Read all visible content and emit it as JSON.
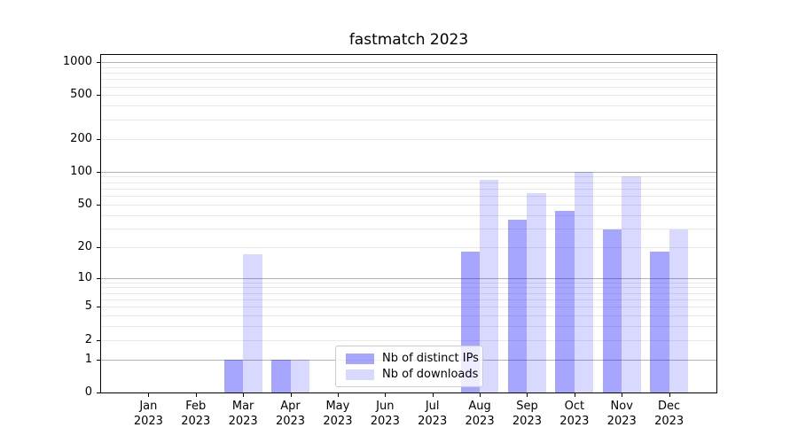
{
  "chart_data": {
    "type": "bar",
    "title": "fastmatch 2023",
    "categories": [
      "Jan",
      "Feb",
      "Mar",
      "Apr",
      "May",
      "Jun",
      "Jul",
      "Aug",
      "Sep",
      "Oct",
      "Nov",
      "Dec"
    ],
    "year_label": "2023",
    "series": [
      {
        "name": "Nb of distinct IPs",
        "color": "rgba(0,0,255,0.35)",
        "values": [
          0,
          0,
          1,
          1,
          0,
          0,
          0,
          18,
          36,
          44,
          29,
          18
        ]
      },
      {
        "name": "Nb of downloads",
        "color": "rgba(0,0,255,0.15)",
        "values": [
          0,
          0,
          17,
          1,
          0,
          0,
          0,
          85,
          63,
          100,
          90,
          29
        ]
      }
    ],
    "yticks": [
      0,
      1,
      2,
      5,
      10,
      20,
      50,
      100,
      200,
      500,
      1000
    ],
    "major_gridlines": [
      1,
      10,
      100,
      1000
    ],
    "minor_gridlines": [
      2,
      3,
      4,
      5,
      6,
      7,
      8,
      9,
      20,
      30,
      40,
      50,
      60,
      70,
      80,
      90,
      200,
      300,
      400,
      500,
      600,
      700,
      800,
      900
    ],
    "scale": "log10(1+y)",
    "ylim": [
      0,
      1216
    ],
    "xlabel": "",
    "ylabel": "",
    "grid": true,
    "legend_position": "lower-center",
    "colors": {
      "major_grid": "#b3b3b3",
      "minor_grid": "#e9e9e9",
      "spine": "#000000",
      "text": "#000000",
      "background": "#ffffff"
    }
  }
}
